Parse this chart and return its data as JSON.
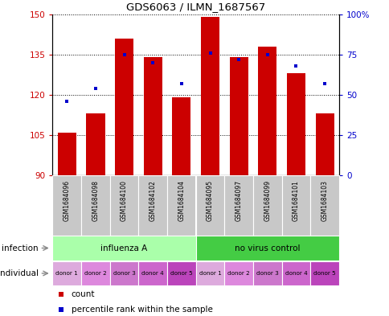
{
  "title": "GDS6063 / ILMN_1687567",
  "samples": [
    "GSM1684096",
    "GSM1684098",
    "GSM1684100",
    "GSM1684102",
    "GSM1684104",
    "GSM1684095",
    "GSM1684097",
    "GSM1684099",
    "GSM1684101",
    "GSM1684103"
  ],
  "counts": [
    106,
    113,
    141,
    134,
    119,
    149,
    134,
    138,
    128,
    113
  ],
  "percentiles": [
    46,
    54,
    75,
    70,
    57,
    76,
    72,
    75,
    68,
    57
  ],
  "ylim_left": [
    90,
    150
  ],
  "ylim_right": [
    0,
    100
  ],
  "yticks_left": [
    90,
    105,
    120,
    135,
    150
  ],
  "yticks_right": [
    0,
    25,
    50,
    75,
    100
  ],
  "ytick_labels_left": [
    "90",
    "105",
    "120",
    "135",
    "150"
  ],
  "ytick_labels_right": [
    "0",
    "25",
    "50",
    "75",
    "100%"
  ],
  "bar_color": "#CC0000",
  "dot_color": "#0000CC",
  "bar_bottom": 90,
  "infection_groups": [
    {
      "label": "influenza A",
      "start": 0,
      "end": 5,
      "color": "#AAFFAA"
    },
    {
      "label": "no virus control",
      "start": 5,
      "end": 10,
      "color": "#44CC44"
    }
  ],
  "individual_labels": [
    "donor 1",
    "donor 2",
    "donor 3",
    "donor 4",
    "donor 5",
    "donor 1",
    "donor 2",
    "donor 3",
    "donor 4",
    "donor 5"
  ],
  "individual_colors": [
    "#DDAADD",
    "#DD88DD",
    "#CC77CC",
    "#CC66CC",
    "#BB44BB",
    "#DDAADD",
    "#DD88DD",
    "#CC77CC",
    "#CC66CC",
    "#BB44BB"
  ],
  "sample_bg_color": "#C8C8C8",
  "infection_label": "infection",
  "individual_label": "individual",
  "legend_count_label": "count",
  "legend_percentile_label": "percentile rank within the sample",
  "grid_color": "#000000"
}
